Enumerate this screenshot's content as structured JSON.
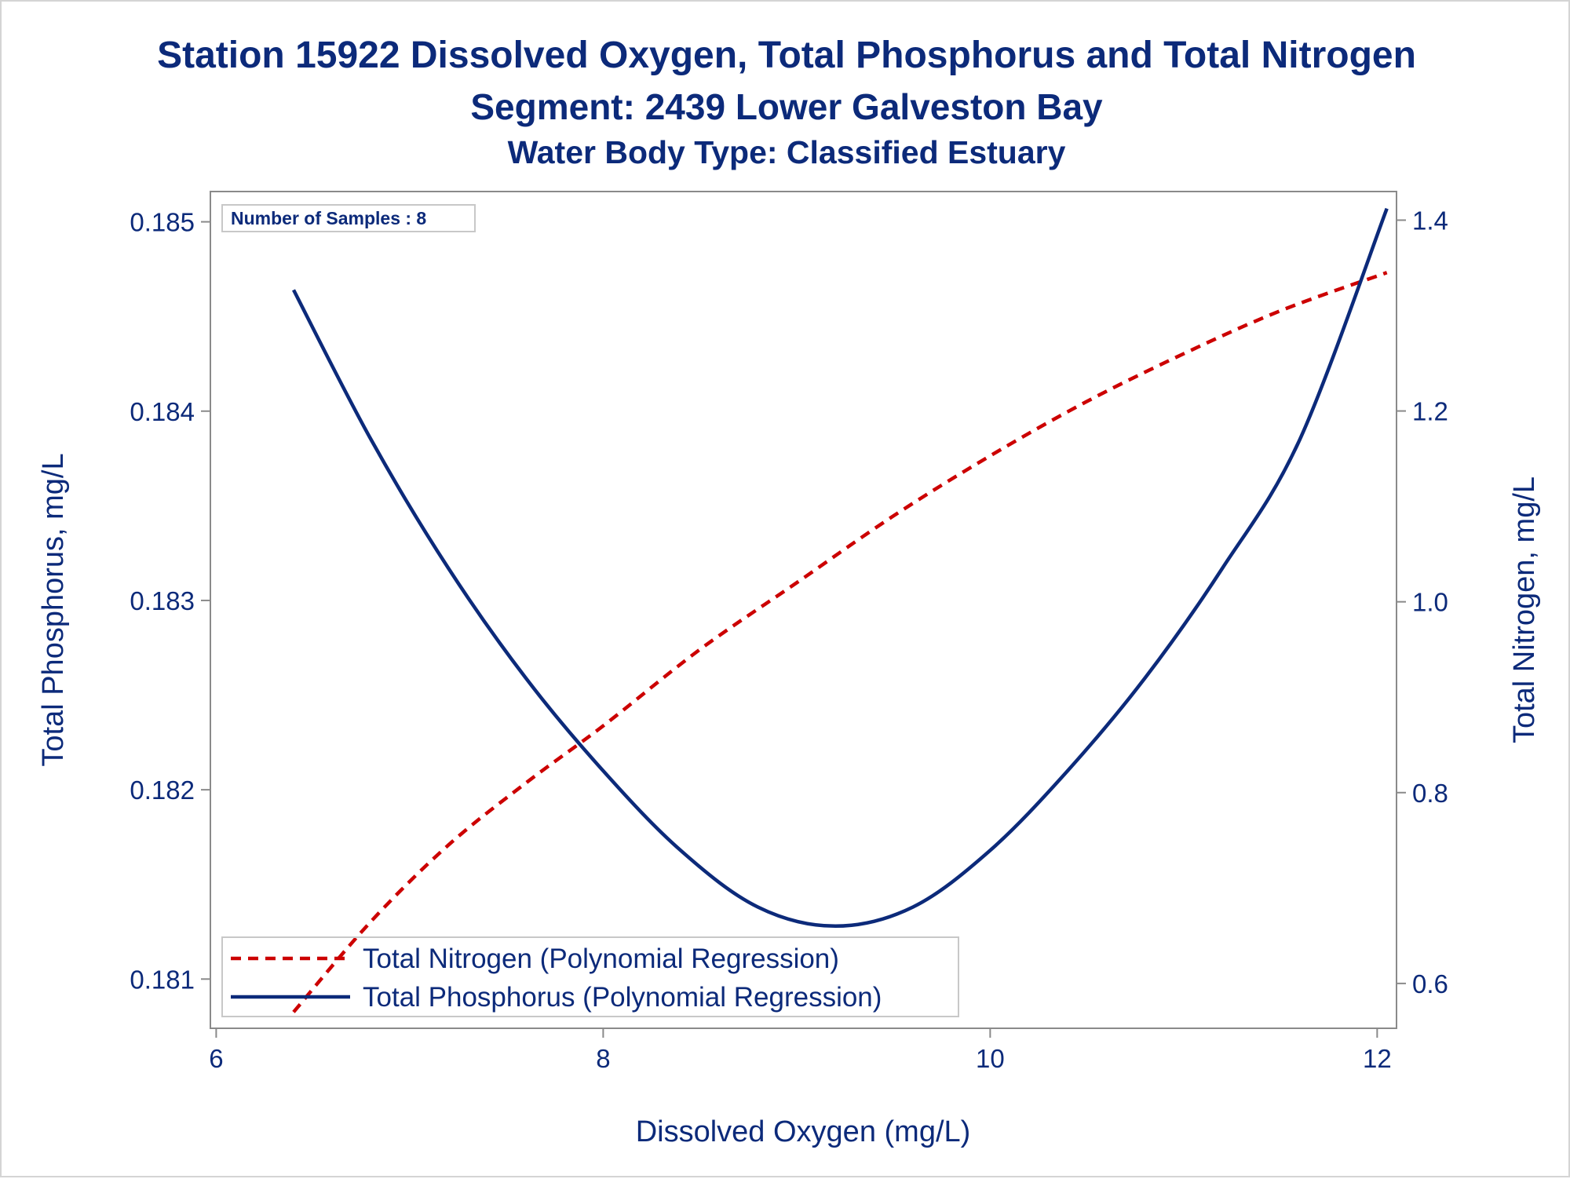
{
  "chart_data": {
    "type": "line",
    "title": "Station 15922  Dissolved Oxygen, Total Phosphorus and Total Nitrogen",
    "subtitle": "Segment: 2439  Lower Galveston Bay",
    "subtitle2": "Water Body Type: Classified Estuary",
    "xlabel": "Dissolved Oxygen (mg/L)",
    "ylabel_left": "Total Phosphorus, mg/L",
    "ylabel_right": "Total Nitrogen, mg/L",
    "inset_text": "Number of Samples : 8",
    "xlim": [
      5.97,
      12.1
    ],
    "ylim_left": [
      0.18074,
      0.18516
    ],
    "ylim_right": [
      0.553,
      1.43
    ],
    "xticks": [
      6,
      8,
      10,
      12
    ],
    "xtick_labels": [
      "6",
      "8",
      "10",
      "12"
    ],
    "yticks_left": [
      0.181,
      0.182,
      0.183,
      0.184,
      0.185
    ],
    "ytick_labels_left": [
      "0.181",
      "0.182",
      "0.183",
      "0.184",
      "0.185"
    ],
    "yticks_right": [
      0.6,
      0.8,
      1.0,
      1.2,
      1.4
    ],
    "ytick_labels_right": [
      "0.6",
      "0.8",
      "1.0",
      "1.2",
      "1.4"
    ],
    "grid": false,
    "legend_position": "bottom-left inside",
    "series": [
      {
        "name": "Total Nitrogen (Polynomial Regression)",
        "axis": "right",
        "style": "dashed",
        "color": "#cc0000",
        "x": [
          6.4,
          6.8,
          7.2,
          7.6,
          8.0,
          8.5,
          9.0,
          9.5,
          10.0,
          10.5,
          11.0,
          11.5,
          12.05
        ],
        "y": [
          0.57,
          0.665,
          0.745,
          0.81,
          0.87,
          0.95,
          1.02,
          1.09,
          1.153,
          1.21,
          1.26,
          1.305,
          1.345
        ]
      },
      {
        "name": "Total Phosphorus (Polynomial Regression)",
        "axis": "left",
        "style": "solid",
        "color": "#0c2a7a",
        "x": [
          6.4,
          6.8,
          7.2,
          7.6,
          8.0,
          8.4,
          8.8,
          9.2,
          9.6,
          10.0,
          10.4,
          10.8,
          11.2,
          11.6,
          12.05
        ],
        "y": [
          0.18464,
          0.18385,
          0.18317,
          0.18259,
          0.1821,
          0.18168,
          0.18138,
          0.18128,
          0.18138,
          0.18168,
          0.1821,
          0.18259,
          0.18317,
          0.18385,
          0.18507
        ]
      }
    ]
  }
}
